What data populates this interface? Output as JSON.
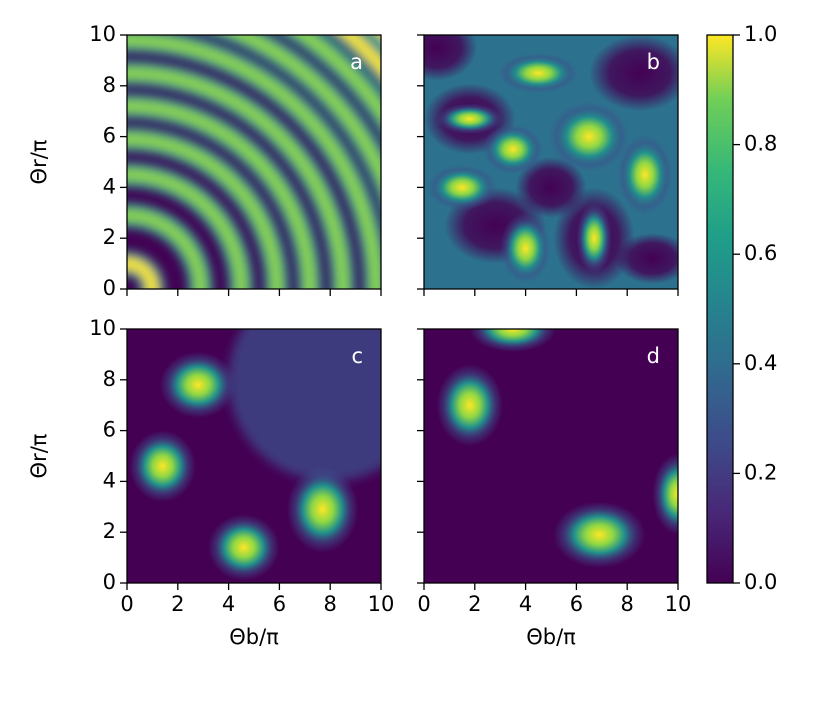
{
  "chart_data": [
    {
      "type": "heatmap",
      "label": "a",
      "xlim": [
        0,
        10
      ],
      "ylim": [
        0,
        10
      ],
      "xticks": [
        0,
        2,
        4,
        6,
        8,
        10
      ],
      "yticks": [
        0,
        2,
        4,
        6,
        8,
        10
      ],
      "xtick_labels": false,
      "ytick_labels": true,
      "ylabel": "Θr/π"
    },
    {
      "type": "heatmap",
      "label": "b",
      "xlim": [
        0,
        10
      ],
      "ylim": [
        0,
        10
      ],
      "xticks": [
        0,
        2,
        4,
        6,
        8,
        10
      ],
      "yticks": [
        0,
        2,
        4,
        6,
        8,
        10
      ],
      "xtick_labels": false,
      "ytick_labels": false
    },
    {
      "type": "heatmap",
      "label": "c",
      "xlim": [
        0,
        10
      ],
      "ylim": [
        0,
        10
      ],
      "xticks": [
        0,
        2,
        4,
        6,
        8,
        10
      ],
      "yticks": [
        0,
        2,
        4,
        6,
        8,
        10
      ],
      "xtick_labels": true,
      "ytick_labels": true,
      "xlabel": "Θb/π",
      "ylabel": "Θr/π"
    },
    {
      "type": "heatmap",
      "label": "d",
      "xlim": [
        0,
        10
      ],
      "ylim": [
        0,
        10
      ],
      "xticks": [
        0,
        2,
        4,
        6,
        8,
        10
      ],
      "yticks": [
        0,
        2,
        4,
        6,
        8,
        10
      ],
      "xtick_labels": true,
      "ytick_labels": false,
      "xlabel": "Θb/π"
    },
    {
      "type": "colorbar",
      "colormap": "viridis",
      "ylim": [
        0,
        1
      ],
      "yticks": [
        {
          "value": 0,
          "label": "0.0"
        },
        0.2,
        0.4,
        0.6,
        0.8,
        {
          "value": 1,
          "label": "1.0"
        }
      ]
    }
  ]
}
